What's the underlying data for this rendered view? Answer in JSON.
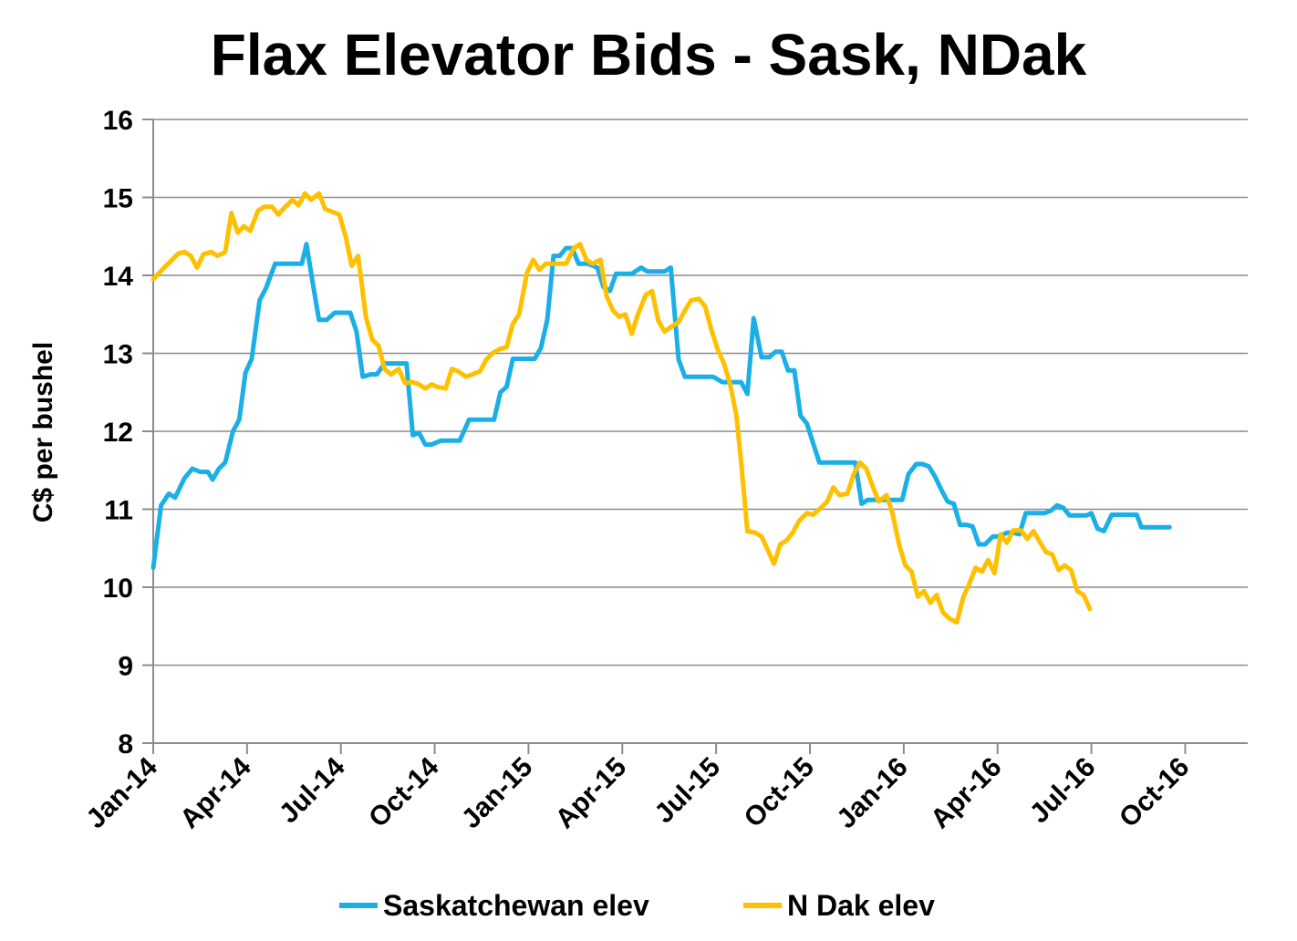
{
  "chart_data": {
    "type": "line",
    "title": "Flax Elevator Bids - Sask, NDak",
    "ylabel": "C$ per bushel",
    "xlabel": "",
    "ylim": [
      8,
      16
    ],
    "yticks": [
      8,
      9,
      10,
      11,
      12,
      13,
      14,
      15,
      16
    ],
    "xlim": [
      0,
      35
    ],
    "x_tick_positions": [
      0,
      3,
      6,
      9,
      12,
      15,
      18,
      21,
      24,
      27,
      30,
      33
    ],
    "x_tick_labels": [
      "Jan-14",
      "Apr-14",
      "Jul-14",
      "Oct-14",
      "Jan-15",
      "Apr-15",
      "Jul-15",
      "Oct-15",
      "Jan-16",
      "Apr-16",
      "Jul-16",
      "Oct-16"
    ],
    "x_unit": "months since Jan-14",
    "grid": true,
    "legend_position": "bottom",
    "series": [
      {
        "name": "Saskatchewan elev",
        "color": "#1AAFE6",
        "points": [
          [
            0,
            10.25
          ],
          [
            0.25,
            11.05
          ],
          [
            0.5,
            11.2
          ],
          [
            0.7,
            11.15
          ],
          [
            1.0,
            11.4
          ],
          [
            1.25,
            11.52
          ],
          [
            1.5,
            11.48
          ],
          [
            1.75,
            11.48
          ],
          [
            1.9,
            11.38
          ],
          [
            2.1,
            11.52
          ],
          [
            2.3,
            11.6
          ],
          [
            2.55,
            12.0
          ],
          [
            2.75,
            12.15
          ],
          [
            2.95,
            12.75
          ],
          [
            3.15,
            12.93
          ],
          [
            3.4,
            13.68
          ],
          [
            3.6,
            13.83
          ],
          [
            3.9,
            14.15
          ],
          [
            4.2,
            14.15
          ],
          [
            4.45,
            14.15
          ],
          [
            4.75,
            14.15
          ],
          [
            4.9,
            14.4
          ],
          [
            5.1,
            13.9
          ],
          [
            5.3,
            13.43
          ],
          [
            5.55,
            13.43
          ],
          [
            5.8,
            13.52
          ],
          [
            6.1,
            13.52
          ],
          [
            6.3,
            13.52
          ],
          [
            6.5,
            13.28
          ],
          [
            6.7,
            12.7
          ],
          [
            6.95,
            12.73
          ],
          [
            7.15,
            12.73
          ],
          [
            7.4,
            12.87
          ],
          [
            7.6,
            12.87
          ],
          [
            7.9,
            12.87
          ],
          [
            8.1,
            12.87
          ],
          [
            8.3,
            11.95
          ],
          [
            8.5,
            11.98
          ],
          [
            8.7,
            11.83
          ],
          [
            8.9,
            11.83
          ],
          [
            9.2,
            11.88
          ],
          [
            9.5,
            11.88
          ],
          [
            9.8,
            11.88
          ],
          [
            10.1,
            12.15
          ],
          [
            10.4,
            12.15
          ],
          [
            10.7,
            12.15
          ],
          [
            10.9,
            12.15
          ],
          [
            11.1,
            12.5
          ],
          [
            11.3,
            12.57
          ],
          [
            11.5,
            12.93
          ],
          [
            11.75,
            12.93
          ],
          [
            12.0,
            12.93
          ],
          [
            12.2,
            12.93
          ],
          [
            12.4,
            13.07
          ],
          [
            12.6,
            13.43
          ],
          [
            12.8,
            14.25
          ],
          [
            13.0,
            14.25
          ],
          [
            13.2,
            14.35
          ],
          [
            13.4,
            14.35
          ],
          [
            13.6,
            14.15
          ],
          [
            13.9,
            14.15
          ],
          [
            14.2,
            14.1
          ],
          [
            14.4,
            13.85
          ],
          [
            14.6,
            13.8
          ],
          [
            14.8,
            14.02
          ],
          [
            15.0,
            14.02
          ],
          [
            15.3,
            14.02
          ],
          [
            15.6,
            14.1
          ],
          [
            15.8,
            14.05
          ],
          [
            16.1,
            14.05
          ],
          [
            16.35,
            14.05
          ],
          [
            16.55,
            14.1
          ],
          [
            16.8,
            12.92
          ],
          [
            17.0,
            12.7
          ],
          [
            17.3,
            12.7
          ],
          [
            17.6,
            12.7
          ],
          [
            17.9,
            12.7
          ],
          [
            18.2,
            12.63
          ],
          [
            18.5,
            12.63
          ],
          [
            18.8,
            12.63
          ],
          [
            19.0,
            12.48
          ],
          [
            19.2,
            13.45
          ],
          [
            19.45,
            12.95
          ],
          [
            19.7,
            12.95
          ],
          [
            19.9,
            13.02
          ],
          [
            20.1,
            13.02
          ],
          [
            20.3,
            12.78
          ],
          [
            20.5,
            12.78
          ],
          [
            20.7,
            12.2
          ],
          [
            20.9,
            12.1
          ],
          [
            21.1,
            11.85
          ],
          [
            21.3,
            11.6
          ],
          [
            21.6,
            11.6
          ],
          [
            21.9,
            11.6
          ],
          [
            22.2,
            11.6
          ],
          [
            22.45,
            11.6
          ],
          [
            22.65,
            11.07
          ],
          [
            22.85,
            11.12
          ],
          [
            23.1,
            11.12
          ],
          [
            23.4,
            11.12
          ],
          [
            23.7,
            11.12
          ],
          [
            23.95,
            11.12
          ],
          [
            24.15,
            11.45
          ],
          [
            24.4,
            11.58
          ],
          [
            24.6,
            11.58
          ],
          [
            24.8,
            11.55
          ],
          [
            25.0,
            11.42
          ],
          [
            25.2,
            11.25
          ],
          [
            25.4,
            11.1
          ],
          [
            25.6,
            11.07
          ],
          [
            25.8,
            10.8
          ],
          [
            26.0,
            10.8
          ],
          [
            26.2,
            10.78
          ],
          [
            26.4,
            10.55
          ],
          [
            26.6,
            10.55
          ],
          [
            26.85,
            10.65
          ],
          [
            27.05,
            10.65
          ],
          [
            27.3,
            10.7
          ],
          [
            27.5,
            10.7
          ],
          [
            27.7,
            10.68
          ],
          [
            27.9,
            10.95
          ],
          [
            28.2,
            10.95
          ],
          [
            28.5,
            10.95
          ],
          [
            28.7,
            10.98
          ],
          [
            28.9,
            11.05
          ],
          [
            29.1,
            11.02
          ],
          [
            29.3,
            10.92
          ],
          [
            29.6,
            10.92
          ],
          [
            29.85,
            10.92
          ],
          [
            30.0,
            10.95
          ],
          [
            30.2,
            10.75
          ],
          [
            30.4,
            10.72
          ],
          [
            30.65,
            10.93
          ],
          [
            30.9,
            10.93
          ],
          [
            31.2,
            10.93
          ],
          [
            31.45,
            10.93
          ],
          [
            31.6,
            10.77
          ],
          [
            31.9,
            10.77
          ],
          [
            32.2,
            10.77
          ],
          [
            32.5,
            10.77
          ]
        ]
      },
      {
        "name": "N Dak elev",
        "color": "#FFC000",
        "points": [
          [
            0,
            13.95
          ],
          [
            0.3,
            14.08
          ],
          [
            0.55,
            14.18
          ],
          [
            0.8,
            14.28
          ],
          [
            1.0,
            14.3
          ],
          [
            1.2,
            14.25
          ],
          [
            1.4,
            14.1
          ],
          [
            1.6,
            14.27
          ],
          [
            1.85,
            14.3
          ],
          [
            2.05,
            14.25
          ],
          [
            2.3,
            14.3
          ],
          [
            2.5,
            14.8
          ],
          [
            2.7,
            14.55
          ],
          [
            2.9,
            14.63
          ],
          [
            3.1,
            14.57
          ],
          [
            3.35,
            14.83
          ],
          [
            3.55,
            14.88
          ],
          [
            3.8,
            14.88
          ],
          [
            4.0,
            14.78
          ],
          [
            4.2,
            14.87
          ],
          [
            4.45,
            14.97
          ],
          [
            4.65,
            14.9
          ],
          [
            4.85,
            15.05
          ],
          [
            5.05,
            14.97
          ],
          [
            5.3,
            15.05
          ],
          [
            5.5,
            14.85
          ],
          [
            5.7,
            14.82
          ],
          [
            5.95,
            14.78
          ],
          [
            6.15,
            14.5
          ],
          [
            6.35,
            14.12
          ],
          [
            6.55,
            14.25
          ],
          [
            6.8,
            13.47
          ],
          [
            7.0,
            13.18
          ],
          [
            7.2,
            13.1
          ],
          [
            7.4,
            12.8
          ],
          [
            7.6,
            12.73
          ],
          [
            7.85,
            12.8
          ],
          [
            8.05,
            12.62
          ],
          [
            8.3,
            12.63
          ],
          [
            8.5,
            12.6
          ],
          [
            8.7,
            12.55
          ],
          [
            8.9,
            12.6
          ],
          [
            9.1,
            12.57
          ],
          [
            9.35,
            12.55
          ],
          [
            9.55,
            12.8
          ],
          [
            9.75,
            12.77
          ],
          [
            10.0,
            12.7
          ],
          [
            10.2,
            12.73
          ],
          [
            10.45,
            12.77
          ],
          [
            10.65,
            12.92
          ],
          [
            10.85,
            13.0
          ],
          [
            11.05,
            13.05
          ],
          [
            11.3,
            13.08
          ],
          [
            11.5,
            13.38
          ],
          [
            11.7,
            13.5
          ],
          [
            11.95,
            14.03
          ],
          [
            12.15,
            14.2
          ],
          [
            12.35,
            14.07
          ],
          [
            12.55,
            14.15
          ],
          [
            12.8,
            14.15
          ],
          [
            13.0,
            14.15
          ],
          [
            13.2,
            14.15
          ],
          [
            13.45,
            14.35
          ],
          [
            13.65,
            14.4
          ],
          [
            13.85,
            14.2
          ],
          [
            14.05,
            14.15
          ],
          [
            14.3,
            14.2
          ],
          [
            14.5,
            13.73
          ],
          [
            14.7,
            13.55
          ],
          [
            14.9,
            13.47
          ],
          [
            15.1,
            13.5
          ],
          [
            15.3,
            13.25
          ],
          [
            15.5,
            13.5
          ],
          [
            15.75,
            13.75
          ],
          [
            15.95,
            13.8
          ],
          [
            16.15,
            13.42
          ],
          [
            16.35,
            13.28
          ],
          [
            16.6,
            13.35
          ],
          [
            16.8,
            13.4
          ],
          [
            17.0,
            13.55
          ],
          [
            17.2,
            13.68
          ],
          [
            17.45,
            13.7
          ],
          [
            17.65,
            13.6
          ],
          [
            17.85,
            13.3
          ],
          [
            18.05,
            13.05
          ],
          [
            18.25,
            12.87
          ],
          [
            18.45,
            12.6
          ],
          [
            18.65,
            12.2
          ],
          [
            18.8,
            11.6
          ],
          [
            19.0,
            10.72
          ],
          [
            19.25,
            10.7
          ],
          [
            19.45,
            10.65
          ],
          [
            19.65,
            10.48
          ],
          [
            19.85,
            10.3
          ],
          [
            20.05,
            10.55
          ],
          [
            20.25,
            10.6
          ],
          [
            20.45,
            10.7
          ],
          [
            20.65,
            10.85
          ],
          [
            20.9,
            10.95
          ],
          [
            21.1,
            10.93
          ],
          [
            21.3,
            11.0
          ],
          [
            21.55,
            11.1
          ],
          [
            21.75,
            11.28
          ],
          [
            21.95,
            11.18
          ],
          [
            22.2,
            11.2
          ],
          [
            22.4,
            11.45
          ],
          [
            22.6,
            11.6
          ],
          [
            22.8,
            11.52
          ],
          [
            23.0,
            11.3
          ],
          [
            23.2,
            11.1
          ],
          [
            23.45,
            11.18
          ],
          [
            23.65,
            10.93
          ],
          [
            23.85,
            10.55
          ],
          [
            24.05,
            10.28
          ],
          [
            24.25,
            10.2
          ],
          [
            24.45,
            9.88
          ],
          [
            24.65,
            9.95
          ],
          [
            24.85,
            9.8
          ],
          [
            25.05,
            9.9
          ],
          [
            25.25,
            9.68
          ],
          [
            25.45,
            9.6
          ],
          [
            25.7,
            9.55
          ],
          [
            25.9,
            9.87
          ],
          [
            26.1,
            10.05
          ],
          [
            26.3,
            10.25
          ],
          [
            26.5,
            10.2
          ],
          [
            26.7,
            10.35
          ],
          [
            26.9,
            10.18
          ],
          [
            27.1,
            10.68
          ],
          [
            27.3,
            10.57
          ],
          [
            27.5,
            10.73
          ],
          [
            27.75,
            10.73
          ],
          [
            27.95,
            10.62
          ],
          [
            28.15,
            10.72
          ],
          [
            28.35,
            10.58
          ],
          [
            28.55,
            10.45
          ],
          [
            28.75,
            10.42
          ],
          [
            28.95,
            10.22
          ],
          [
            29.15,
            10.28
          ],
          [
            29.35,
            10.22
          ],
          [
            29.55,
            9.95
          ],
          [
            29.75,
            9.9
          ],
          [
            29.95,
            9.72
          ]
        ]
      }
    ]
  }
}
